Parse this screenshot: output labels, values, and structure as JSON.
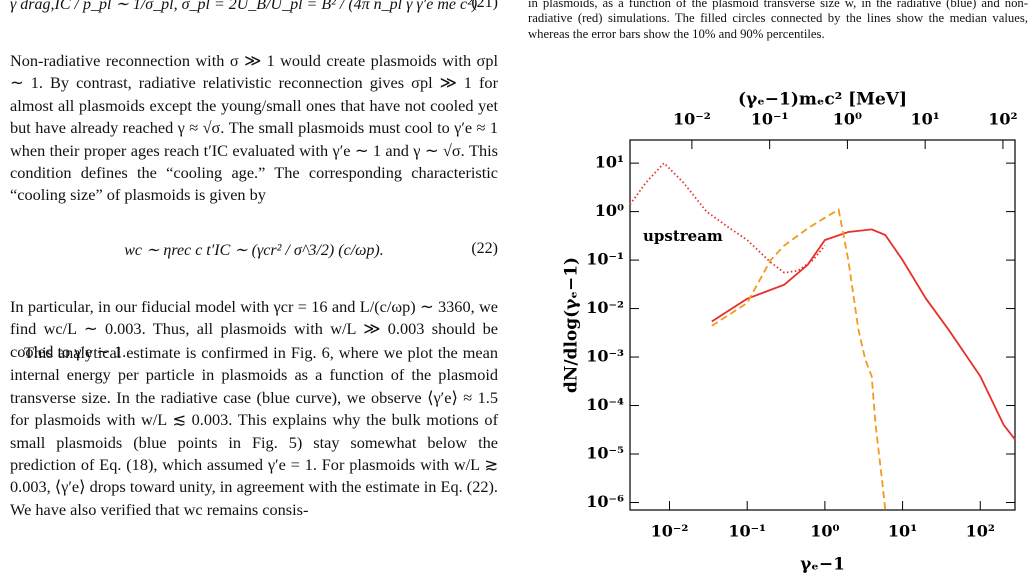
{
  "left_column": {
    "eq21": "γ drag,IC / p_pl ∼ 1/σ_pl,     σ_pl = 2U_B/U_pl = B² / (4π n_pl γ γ′e me c²)",
    "eq21_number": "(21)",
    "paragraph1": "Non-radiative reconnection with σ ≫ 1 would create plasmoids with σpl ∼ 1. By contrast, radiative relativistic reconnection gives σpl ≫ 1 for almost all plasmoids except the young/small ones that have not cooled yet but have already reached γ ≈ √σ. The small plasmoids must cool to γ′e ≈ 1 when their proper ages reach t′IC evaluated with γ′e ∼ 1 and γ ∼ √σ. This condition defines the “cooling age.” The corresponding characteristic “cooling size” of plasmoids is given by",
    "eq22": "wc ∼ ηrec c t′IC ∼ (γcr² / σ^3/2) (c/ωp).",
    "eq22_number": "(22)",
    "paragraph2": "In particular, in our fiducial model with γcr = 16 and L/(c/ωp) ∼ 3360, we find wc/L ∼ 0.003. Thus, all plasmoids with w/L ≫ 0.003 should be cooled to γ′e ∼ 1.",
    "paragraph3": "This analytical estimate is confirmed in Fig. 6, where we plot the mean internal energy per particle in plasmoids as a function of the plasmoid transverse size. In the radiative case (blue curve), we observe ⟨γ′e⟩ ≈ 1.5 for plasmoids with w/L ≲ 0.003. This explains why the bulk motions of small plasmoids (blue points in Fig. 5) stay somewhat below the prediction of Eq. (18), which assumed γ′e = 1. For plasmoids with w/L ≳ 0.003, ⟨γ′e⟩ drops toward unity, in agreement with the estimate in Eq. (22). We have also verified that wc remains consis-"
  },
  "caption": "in plasmoids, as a function of the plasmoid transverse size w, in the radiative (blue) and non-radiative (red) simulations. The filled circles connected by the lines show the median values, whereas the error bars show the 10% and 90% percentiles.",
  "chart_data": {
    "type": "line",
    "log_x": true,
    "log_y": true,
    "x_label": "γₑ−1",
    "y_label": "dN/dlog(γₑ−1)",
    "x2_label": "(γₑ−1)mₑc²  [MeV]",
    "annotation": "upstream",
    "xlim": [
      0.0031,
      280
    ],
    "ylim": [
      7e-07,
      30
    ],
    "x2lim": [
      0.0016,
      143
    ],
    "xticks": [
      {
        "value": 0.01,
        "label": "10⁻²"
      },
      {
        "value": 0.1,
        "label": "10⁻¹"
      },
      {
        "value": 1,
        "label": "10⁰"
      },
      {
        "value": 10,
        "label": "10¹"
      },
      {
        "value": 100,
        "label": "10²"
      }
    ],
    "x2ticks": [
      {
        "value": 0.01,
        "label": "10⁻²"
      },
      {
        "value": 0.1,
        "label": "10⁻¹"
      },
      {
        "value": 1,
        "label": "10⁰"
      },
      {
        "value": 10,
        "label": "10¹"
      },
      {
        "value": 100,
        "label": "10²"
      }
    ],
    "yticks": [
      {
        "value": 10,
        "label": "10¹"
      },
      {
        "value": 1,
        "label": "10⁰"
      },
      {
        "value": 0.1,
        "label": "10⁻¹"
      },
      {
        "value": 0.01,
        "label": "10⁻²"
      },
      {
        "value": 0.001,
        "label": "10⁻³"
      },
      {
        "value": 0.0001,
        "label": "10⁻⁴"
      },
      {
        "value": 1e-05,
        "label": "10⁻⁵"
      },
      {
        "value": 1e-06,
        "label": "10⁻⁶"
      }
    ],
    "series": [
      {
        "color": "#e8302a",
        "dash": "dotted",
        "x": [
          0.0031,
          0.005,
          0.0085,
          0.015,
          0.03,
          0.06,
          0.1,
          0.2,
          0.3,
          0.45,
          0.7,
          1
        ],
        "values": [
          1.4,
          4,
          10,
          4,
          1.0,
          0.45,
          0.26,
          0.09,
          0.055,
          0.06,
          0.1,
          0.2
        ]
      },
      {
        "color": "#e8302a",
        "dash": "solid",
        "x": [
          0.035,
          0.1,
          0.3,
          0.6,
          1,
          2,
          4,
          6,
          10,
          20,
          40,
          100,
          200,
          280
        ],
        "values": [
          0.0054,
          0.016,
          0.031,
          0.08,
          0.26,
          0.38,
          0.43,
          0.33,
          0.1,
          0.016,
          0.0035,
          0.0004,
          4e-05,
          2e-05
        ]
      },
      {
        "color": "#f29a1d",
        "dash": "dashed",
        "x": [
          0.035,
          0.1,
          0.2,
          0.3,
          0.6,
          1.0,
          1.5,
          2,
          2.7,
          3.3,
          4,
          4.5,
          5.5,
          6
        ],
        "values": [
          0.0044,
          0.013,
          0.1,
          0.2,
          0.45,
          0.75,
          1.1,
          0.1,
          0.0037,
          0.0009,
          0.0004,
          4e-05,
          2.5e-06,
          7e-07
        ]
      }
    ]
  }
}
